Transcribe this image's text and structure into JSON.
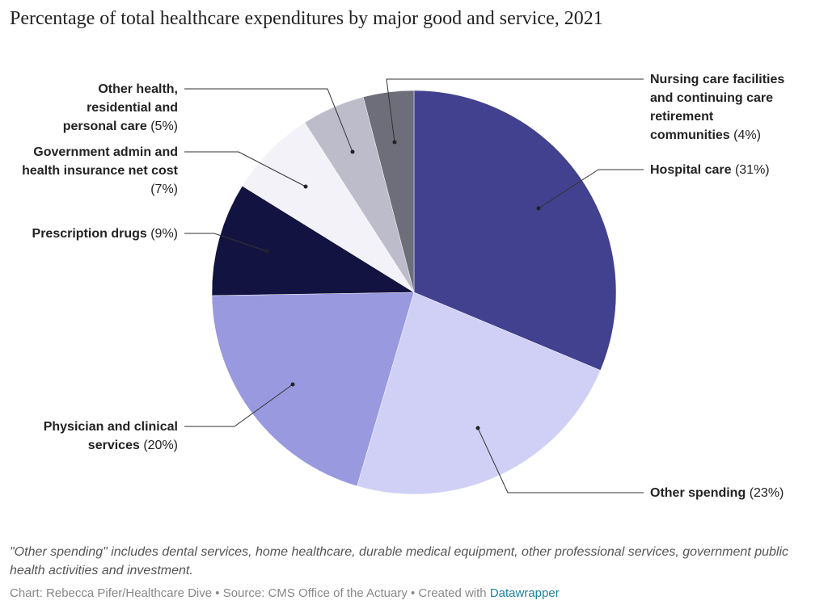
{
  "chart_data": {
    "type": "pie",
    "title": "Percentage of total healthcare expenditures by major good and service, 2021",
    "categories": [
      "Hospital care",
      "Other spending",
      "Physician and clinical services",
      "Prescription drugs",
      "Government admin and health insurance net cost",
      "Other health, residential and personal care",
      "Nursing care facilities and continuing care retirement communities"
    ],
    "values": [
      31,
      23,
      20,
      9,
      7,
      5,
      4
    ],
    "value_labels": [
      "(31%)",
      "(23%)",
      "(20%)",
      "(9%)",
      "(7%)",
      "(5%)",
      "(4%)"
    ],
    "colors": [
      "#41418f",
      "#d0d0f7",
      "#9999e0",
      "#131342",
      "#f2f2f8",
      "#bcbccb",
      "#6e6e7a"
    ],
    "note": "\"Other spending\" includes dental services, home healthcare, durable medical equipment, other professional services, government public health activities and investment.",
    "source": "Chart: Rebecca Pifer/Healthcare Dive • Source: CMS Office of the Actuary • Created with",
    "credit": "Datawrapper"
  }
}
